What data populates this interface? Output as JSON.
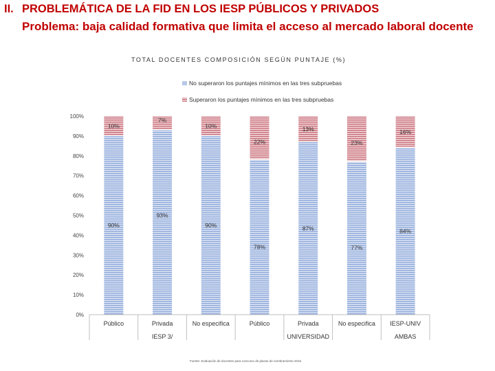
{
  "slide": {
    "section_number": "II.",
    "section_title": "PROBLEMÁTICA DE LA FID EN LOS IESP PÚBLICOS Y PRIVADOS",
    "subtitle": "Problema: baja calidad formativa que limita el acceso al mercado laboral docente"
  },
  "chart_data": {
    "type": "bar",
    "stacked": true,
    "title": "TOTAL DOCENTES COMPOSICIÓN SEGÚN PUNTAJE (%)",
    "categories": [
      "Público",
      "Privada",
      "No especifica",
      "Público",
      "Privada",
      "No especifica",
      "IESP-UNIV"
    ],
    "groups": [
      {
        "label": "IESP 3/",
        "span": [
          0,
          2
        ]
      },
      {
        "label": "UNIVERSIDAD",
        "span": [
          3,
          5
        ]
      },
      {
        "label": "AMBAS",
        "span": [
          6,
          6
        ]
      }
    ],
    "series": [
      {
        "name": "No superaron los puntajes mínimos en las tres subpruebas",
        "values": [
          90,
          93,
          90,
          78,
          87,
          77,
          84
        ],
        "labels": [
          "90%",
          "93%",
          "90%",
          "78%",
          "87%",
          "77%",
          "84%"
        ],
        "color": "#8faadc"
      },
      {
        "name": "Superaron los puntajes mínimos en las tres subpruebas",
        "values": [
          10,
          7,
          10,
          22,
          13,
          23,
          16
        ],
        "labels": [
          "10%",
          "7%",
          "10%",
          "22%",
          "13%",
          "23%",
          "16%"
        ],
        "color": "#c9707a"
      }
    ],
    "yticks": [
      "0%",
      "10%",
      "20%",
      "30%",
      "40%",
      "50%",
      "60%",
      "70%",
      "80%",
      "90%",
      "100%"
    ],
    "ylim": [
      0,
      100
    ],
    "legend": "top",
    "source": "Fuente: Evaluación de docentes para concurso de plazas de nombramiento 2015"
  }
}
